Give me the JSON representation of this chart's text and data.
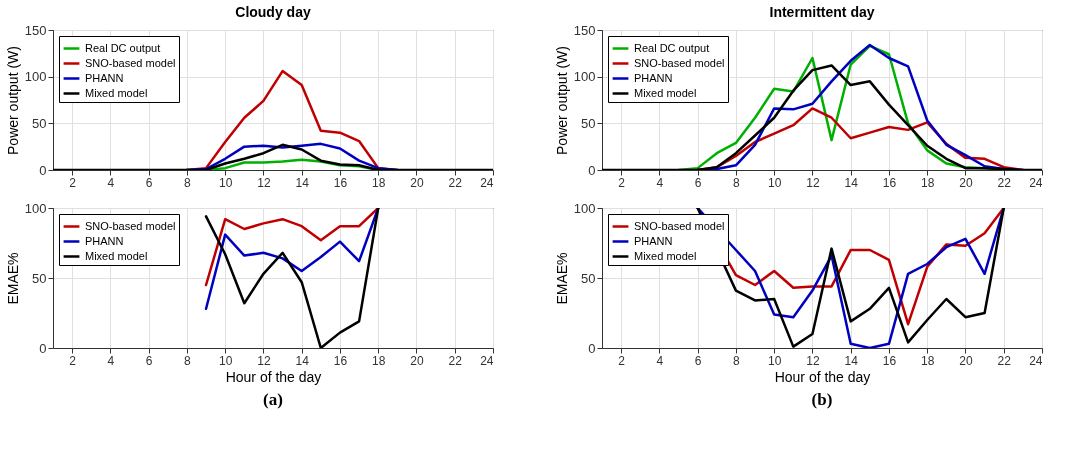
{
  "chart_data": [
    {
      "type": "line",
      "title": "Cloudy day",
      "ylabel": "Power output (W)",
      "x": [
        1,
        2,
        3,
        4,
        5,
        6,
        7,
        8,
        9,
        10,
        11,
        12,
        13,
        14,
        15,
        16,
        17,
        18,
        19,
        20,
        21,
        22,
        23,
        24
      ],
      "xlim": [
        1,
        24
      ],
      "xticks": [
        2,
        4,
        6,
        8,
        10,
        12,
        14,
        16,
        18,
        20,
        22,
        24
      ],
      "ylim": [
        0,
        150
      ],
      "yticks": [
        0,
        50,
        100,
        150
      ],
      "grid": true,
      "legend": "top left",
      "line_style": "solid",
      "series": [
        {
          "name": "Real DC output",
          "color": "#00b000",
          "values": [
            null,
            null,
            null,
            null,
            null,
            null,
            null,
            null,
            0,
            2,
            8,
            8,
            9,
            11,
            9,
            5,
            4,
            0,
            null,
            null,
            null,
            null,
            null,
            null
          ]
        },
        {
          "name": "SNO-based model",
          "color": "#c00000",
          "values": [
            null,
            null,
            null,
            null,
            null,
            null,
            null,
            0,
            2,
            30,
            56,
            74,
            106,
            91,
            42,
            40,
            31,
            2,
            0,
            null,
            null,
            null,
            null,
            null
          ]
        },
        {
          "name": "PHANN",
          "color": "#0000c0",
          "values": [
            null,
            null,
            null,
            null,
            null,
            null,
            null,
            0,
            1,
            12,
            25,
            26,
            24,
            26,
            28,
            23,
            10,
            2,
            0,
            null,
            null,
            null,
            null,
            null
          ]
        },
        {
          "name": "Mixed model",
          "color": "#000000",
          "values": [
            0,
            0,
            0,
            0,
            0,
            0,
            0,
            0,
            0,
            7,
            12,
            18,
            27,
            22,
            10,
            6,
            5,
            0,
            0,
            0,
            0,
            0,
            0,
            0
          ]
        }
      ]
    },
    {
      "type": "line",
      "title": "Intermittent day",
      "ylabel": "Power output (W)",
      "x": [
        1,
        2,
        3,
        4,
        5,
        6,
        7,
        8,
        9,
        10,
        11,
        12,
        13,
        14,
        15,
        16,
        17,
        18,
        19,
        20,
        21,
        22,
        23,
        24
      ],
      "xlim": [
        1,
        24
      ],
      "xticks": [
        2,
        4,
        6,
        8,
        10,
        12,
        14,
        16,
        18,
        20,
        22,
        24
      ],
      "ylim": [
        0,
        150
      ],
      "yticks": [
        0,
        50,
        100,
        150
      ],
      "grid": true,
      "legend": "top left",
      "line_style": "solid",
      "series": [
        {
          "name": "Real DC output",
          "color": "#00b000",
          "values": [
            null,
            null,
            null,
            null,
            0,
            2,
            18,
            29,
            56,
            87,
            84,
            120,
            32,
            113,
            133,
            124,
            50,
            21,
            7,
            3,
            2,
            0,
            null,
            null
          ]
        },
        {
          "name": "SNO-based model",
          "color": "#c00000",
          "values": [
            null,
            null,
            null,
            null,
            null,
            0,
            3,
            15,
            30,
            39,
            48,
            66,
            56,
            34,
            40,
            46,
            43,
            51,
            28,
            13,
            12,
            3,
            0,
            null
          ]
        },
        {
          "name": "PHANN",
          "color": "#0000c0",
          "values": [
            null,
            null,
            null,
            null,
            null,
            0,
            1,
            5,
            27,
            66,
            65,
            71,
            95,
            117,
            134,
            120,
            111,
            53,
            27,
            16,
            4,
            1,
            0,
            null
          ]
        },
        {
          "name": "Mixed model",
          "color": "#000000",
          "values": [
            0,
            0,
            0,
            0,
            0,
            0,
            3,
            18,
            37,
            56,
            85,
            107,
            112,
            91,
            95,
            70,
            48,
            26,
            12,
            2,
            2,
            1,
            0,
            0
          ]
        }
      ]
    },
    {
      "type": "line",
      "xlabel": "Hour of the day",
      "ylabel": "EMAE%",
      "annotations": [
        "(a)"
      ],
      "x": [
        9,
        10,
        11,
        12,
        13,
        14,
        15,
        16,
        17,
        18
      ],
      "xlim": [
        1,
        24
      ],
      "xticks": [
        2,
        4,
        6,
        8,
        10,
        12,
        14,
        16,
        18,
        20,
        22,
        24
      ],
      "ylim": [
        0,
        100
      ],
      "yticks": [
        0,
        50,
        100
      ],
      "grid": true,
      "legend": "top left",
      "line_style": "solid",
      "series": [
        {
          "name": "SNO-based model",
          "color": "#c00000",
          "values": [
            45,
            92,
            85,
            89,
            92,
            87,
            77,
            87,
            87,
            100
          ]
        },
        {
          "name": "PHANN",
          "color": "#0000c0",
          "values": [
            28,
            81,
            66,
            68,
            64,
            55,
            65,
            76,
            62,
            100
          ]
        },
        {
          "name": "Mixed model",
          "color": "#000000",
          "values": [
            94,
            67,
            32,
            53,
            68,
            47,
            0,
            11,
            19,
            100
          ]
        }
      ]
    },
    {
      "type": "line",
      "xlabel": "Hour of the day",
      "ylabel": "EMAE%",
      "annotations": [
        "(b)"
      ],
      "x": [
        6,
        7,
        8,
        9,
        10,
        11,
        12,
        13,
        14,
        15,
        16,
        17,
        18,
        19,
        20,
        21,
        22
      ],
      "xlim": [
        1,
        24
      ],
      "xticks": [
        2,
        4,
        6,
        8,
        10,
        12,
        14,
        16,
        18,
        20,
        22,
        24
      ],
      "ylim": [
        0,
        100
      ],
      "yticks": [
        0,
        50,
        100
      ],
      "grid": true,
      "legend": "top left",
      "line_style": "solid",
      "series": [
        {
          "name": "SNO-based model",
          "color": "#c00000",
          "values": [
            100,
            null,
            52,
            45,
            55,
            43,
            44,
            44,
            70,
            70,
            63,
            17,
            58,
            74,
            73,
            82,
            100
          ]
        },
        {
          "name": "PHANN",
          "color": "#0000c0",
          "values": [
            100,
            null,
            70,
            55,
            24,
            22,
            41,
            66,
            3,
            0,
            3,
            53,
            60,
            72,
            78,
            53,
            100
          ]
        },
        {
          "name": "Mixed model",
          "color": "#000000",
          "values": [
            100,
            null,
            41,
            34,
            35,
            1,
            10,
            71,
            19,
            28,
            43,
            4,
            20,
            35,
            22,
            25,
            100
          ]
        }
      ]
    }
  ]
}
